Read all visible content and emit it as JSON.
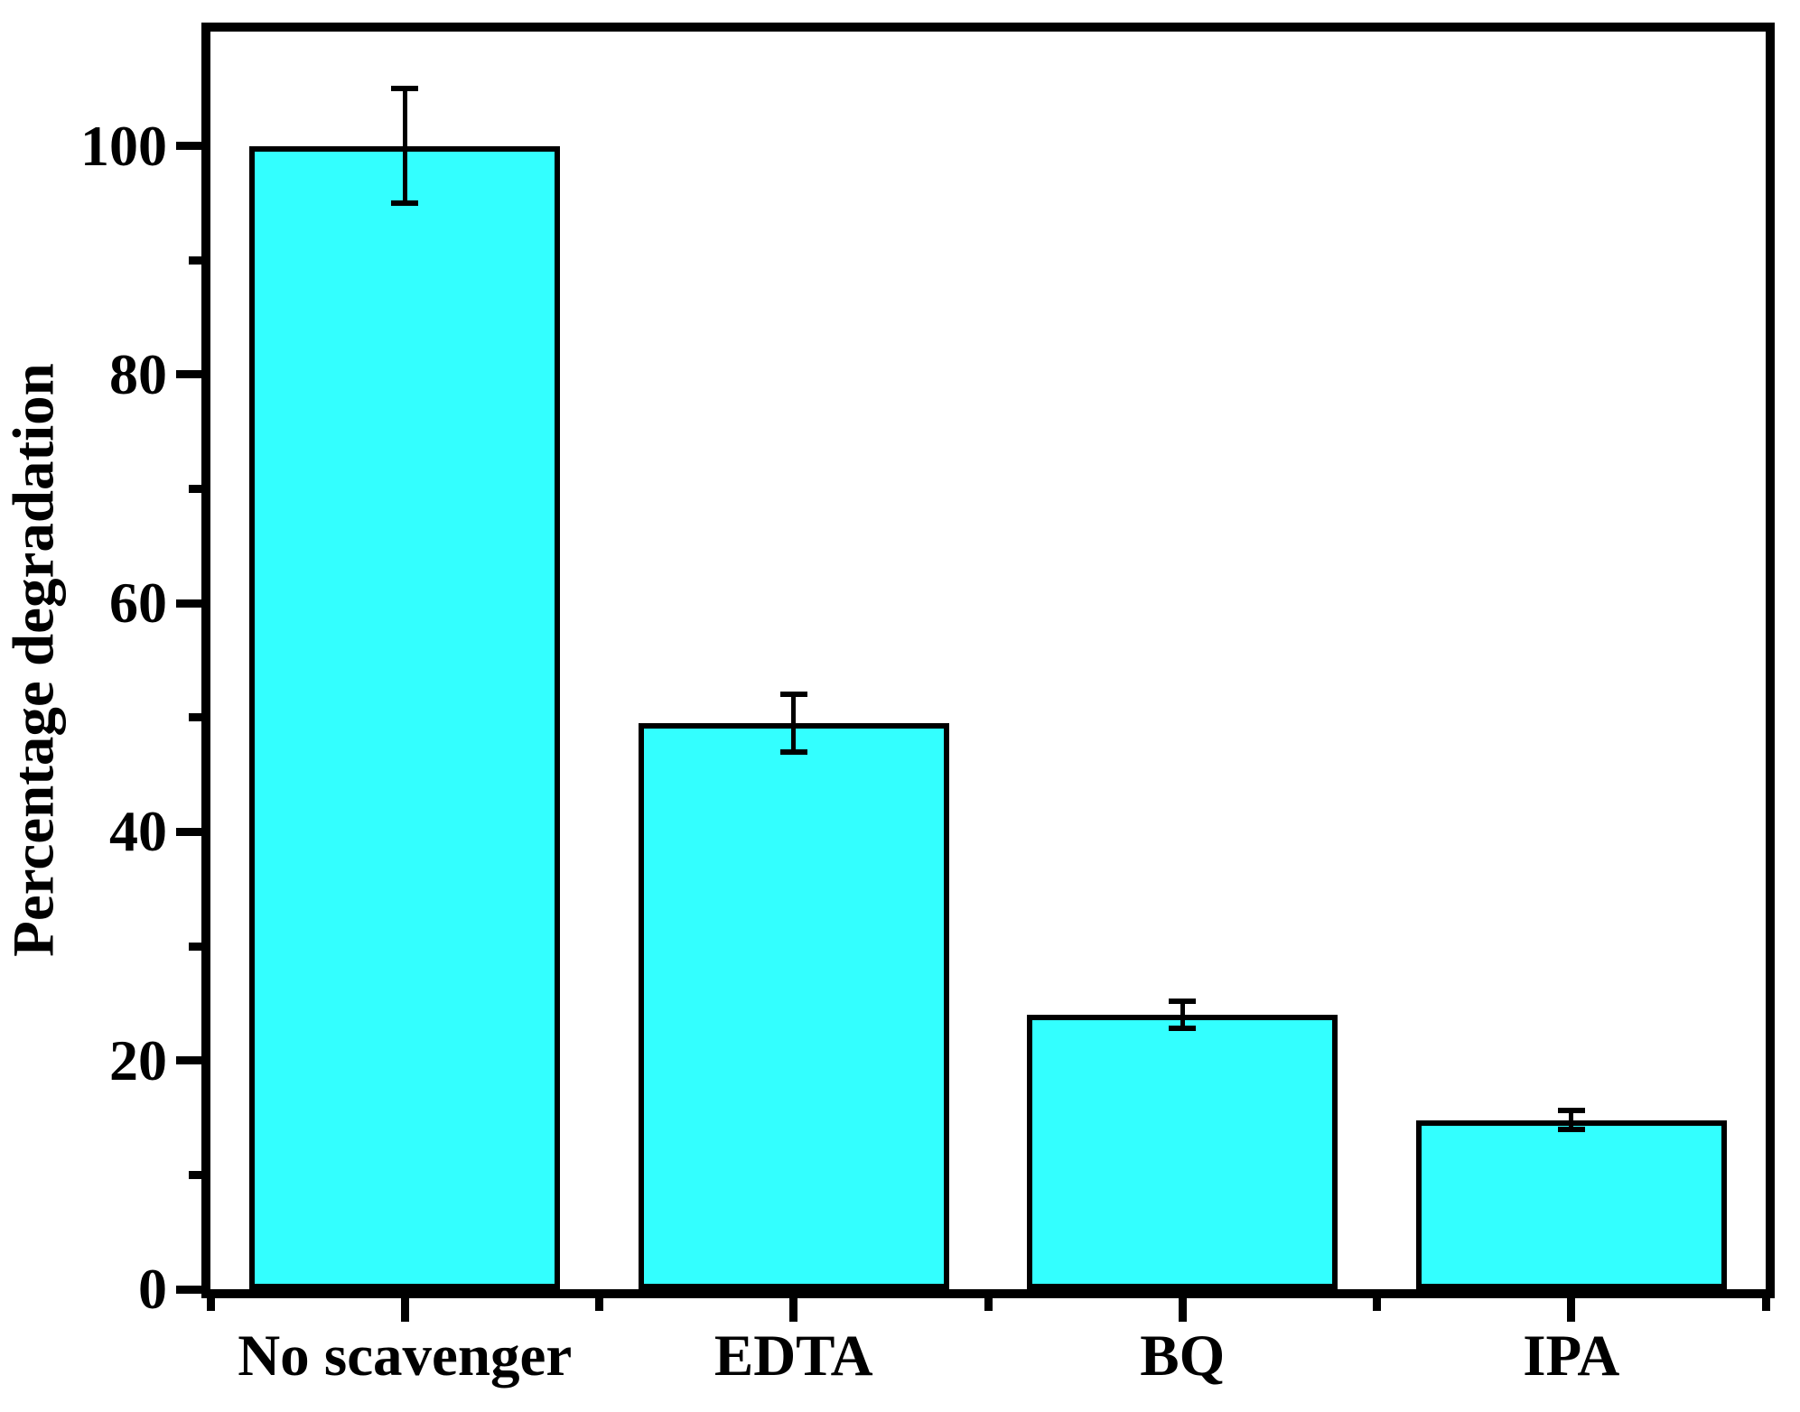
{
  "figure": {
    "background": "#FFFFFF"
  },
  "chart_data": {
    "type": "bar",
    "categories": [
      "No scavenger",
      "EDTA",
      "BQ",
      "IPA"
    ],
    "values": [
      100,
      49.5,
      24,
      14.8
    ],
    "errors": [
      5,
      2.5,
      1.2,
      0.8
    ],
    "title": "",
    "xlabel": "",
    "ylabel": "Percentage degradation",
    "ylim": [
      0,
      110
    ],
    "yticks_major": [
      0,
      20,
      40,
      60,
      80,
      100
    ],
    "yticks_minor": [
      10,
      30,
      50,
      70,
      90
    ],
    "bar_fill": "#33FFFF",
    "bar_stroke": "#000000",
    "axis_color": "#000000",
    "bar_width_frac": 0.8,
    "grid": false,
    "legend_position": "none"
  }
}
